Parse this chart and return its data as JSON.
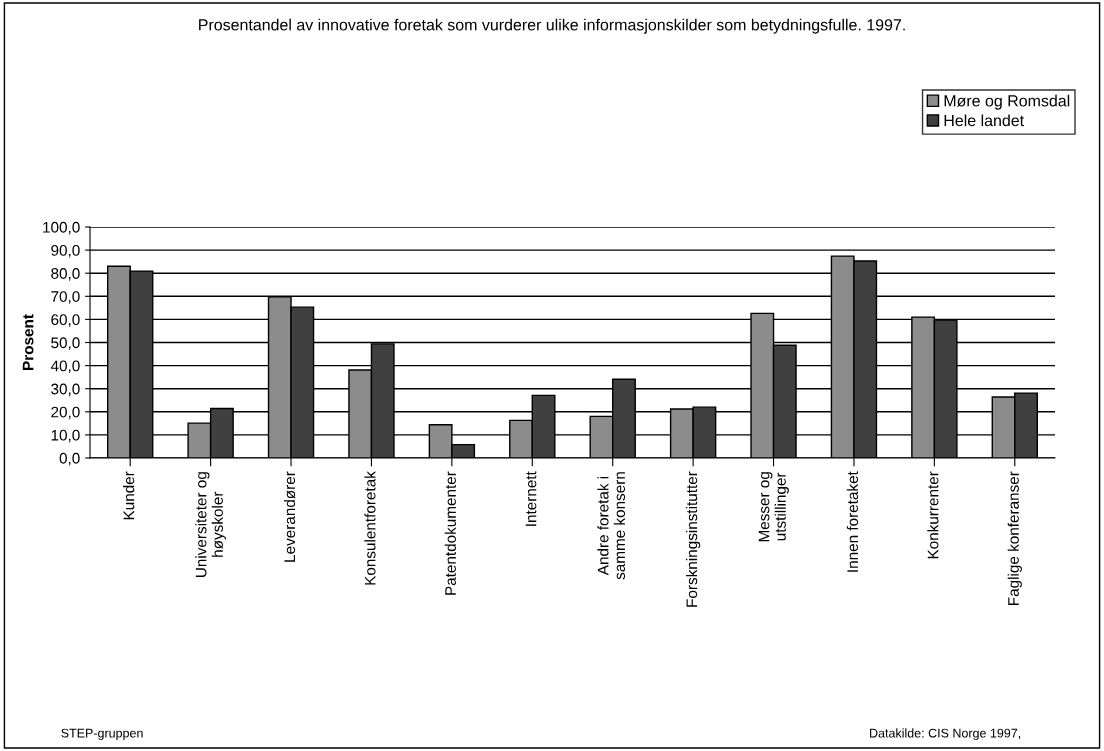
{
  "chart_data": {
    "type": "bar",
    "title": "Prosentandel av innovative foretak som vurderer ulike informasjonskilder som betydningsfulle. 1997.",
    "ylabel": "Prosent",
    "categories": [
      "Kunder",
      "Universiteter og\nhøyskoler",
      "Leverandører",
      "Konsulentforetak",
      "Patentdokumenter",
      "Internett",
      "Andre foretak i\nsamme konsern",
      "Forskningsinstitutter",
      "Messer og\nutstillinger",
      "Innen foretaket",
      "Konkurrenter",
      "Faglige konferanser"
    ],
    "series": [
      {
        "name": "Møre og Romsdal",
        "color": "#8c8c8c",
        "values": [
          83.0,
          15.1,
          69.8,
          38.1,
          14.4,
          16.3,
          18.0,
          21.2,
          62.6,
          87.4,
          61.0,
          26.4
        ]
      },
      {
        "name": "Hele landet",
        "color": "#404040",
        "values": [
          80.9,
          21.4,
          65.3,
          49.4,
          5.8,
          27.1,
          34.1,
          22.0,
          48.8,
          85.3,
          59.7,
          28.1
        ]
      }
    ],
    "ylim": [
      0,
      100
    ],
    "yticks": [
      {
        "value": 0,
        "label": "0,0"
      },
      {
        "value": 10,
        "label": "10,0"
      },
      {
        "value": 20,
        "label": "20,0"
      },
      {
        "value": 30,
        "label": "30,0"
      },
      {
        "value": 40,
        "label": "40,0"
      },
      {
        "value": 50,
        "label": "50,0"
      },
      {
        "value": 60,
        "label": "60,0"
      },
      {
        "value": 70,
        "label": "70,0"
      },
      {
        "value": 80,
        "label": "80,0"
      },
      {
        "value": 90,
        "label": "90,0"
      },
      {
        "value": 100,
        "label": "100,0"
      }
    ],
    "grid": "y",
    "legend": "top right",
    "annotations": [
      "STEP-gruppen",
      "Datakilde: CIS Norge 1997,"
    ]
  }
}
